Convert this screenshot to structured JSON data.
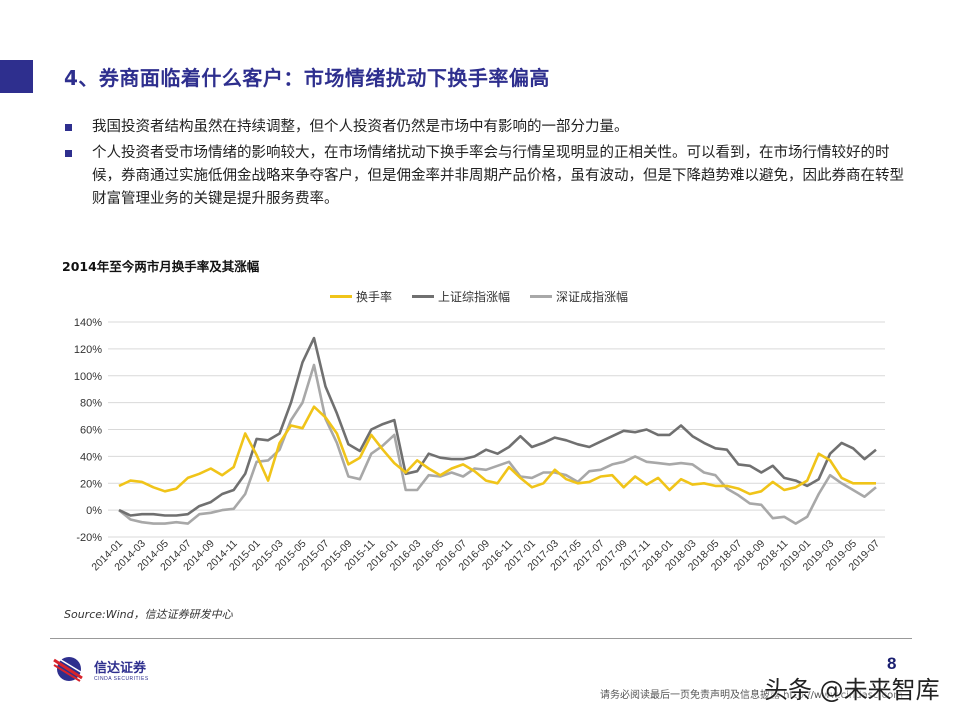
{
  "header": {
    "title": "4、券商面临着什么客户：市场情绪扰动下换手率偏高"
  },
  "bullets": [
    "我国投资者结构虽然在持续调整，但个人投资者仍然是市场中有影响的一部分力量。",
    "个人投资者受市场情绪的影响较大，在市场情绪扰动下换手率会与行情呈现明显的正相关性。可以看到，在市场行情较好的时候，券商通过实施低佣金战略来争夺客户，但是佣金率并非周期产品价格，虽有波动，但是下降趋势难以避免，因此券商在转型财富管理业务的关键是提升服务费率。"
  ],
  "chart_title": "2014年至今两市月换手率及其涨幅",
  "legend": [
    {
      "label": "换手率",
      "color": "#f0c419"
    },
    {
      "label": "上证综指涨幅",
      "color": "#707070"
    },
    {
      "label": "深证成指涨幅",
      "color": "#a8a8a8"
    }
  ],
  "source": "Source:Wind，信达证券研发中心",
  "footer": {
    "logo_cn": "信达证券",
    "logo_en": "CINDA SECURITIES",
    "page_number": "8",
    "disclaimer": "请务必阅读最后一页免责声明及信息披露 http://www.cindasc.com",
    "watermark": "头条 @未来智库"
  },
  "chart_data": {
    "type": "line",
    "title": "2014年至今两市月换手率及其涨幅",
    "xlabel": "",
    "ylabel": "",
    "ylim": [
      -20,
      140
    ],
    "yticks": [
      "-20%",
      "0%",
      "20%",
      "40%",
      "60%",
      "80%",
      "100%",
      "120%",
      "140%"
    ],
    "grid": true,
    "legend_position": "top",
    "x": [
      "2014-01",
      "2014-02",
      "2014-03",
      "2014-04",
      "2014-05",
      "2014-06",
      "2014-07",
      "2014-08",
      "2014-09",
      "2014-10",
      "2014-11",
      "2014-12",
      "2015-01",
      "2015-02",
      "2015-03",
      "2015-04",
      "2015-05",
      "2015-06",
      "2015-07",
      "2015-08",
      "2015-09",
      "2015-10",
      "2015-11",
      "2015-12",
      "2016-01",
      "2016-02",
      "2016-03",
      "2016-04",
      "2016-05",
      "2016-06",
      "2016-07",
      "2016-08",
      "2016-09",
      "2016-10",
      "2016-11",
      "2016-12",
      "2017-01",
      "2017-02",
      "2017-03",
      "2017-04",
      "2017-05",
      "2017-06",
      "2017-07",
      "2017-08",
      "2017-09",
      "2017-10",
      "2017-11",
      "2017-12",
      "2018-01",
      "2018-02",
      "2018-03",
      "2018-04",
      "2018-05",
      "2018-06",
      "2018-07",
      "2018-08",
      "2018-09",
      "2018-10",
      "2018-11",
      "2018-12",
      "2019-01",
      "2019-02",
      "2019-03",
      "2019-04",
      "2019-05",
      "2019-06",
      "2019-07"
    ],
    "xtick_labels": [
      "2014-01",
      "2014-03",
      "2014-05",
      "2014-07",
      "2014-09",
      "2014-11",
      "2015-01",
      "2015-03",
      "2015-05",
      "2015-07",
      "2015-09",
      "2015-11",
      "2016-01",
      "2016-03",
      "2016-05",
      "2016-07",
      "2016-09",
      "2016-11",
      "2017-01",
      "2017-03",
      "2017-05",
      "2017-07",
      "2017-09",
      "2017-11",
      "2018-01",
      "2018-03",
      "2018-05",
      "2018-07",
      "2018-09",
      "2018-11",
      "2019-01",
      "2019-03",
      "2019-05",
      "2019-07"
    ],
    "series": [
      {
        "name": "换手率",
        "color": "#f0c419",
        "values": [
          18,
          22,
          21,
          17,
          14,
          16,
          24,
          27,
          31,
          26,
          32,
          57,
          41,
          22,
          50,
          63,
          61,
          77,
          69,
          57,
          34,
          39,
          56,
          45,
          35,
          28,
          37,
          31,
          26,
          31,
          34,
          29,
          22,
          20,
          32,
          24,
          17,
          20,
          30,
          23,
          20,
          21,
          25,
          26,
          17,
          25,
          19,
          24,
          15,
          23,
          19,
          20,
          18,
          18,
          16,
          12,
          14,
          21,
          15,
          17,
          22,
          42,
          37,
          24,
          20,
          20,
          20
        ]
      },
      {
        "name": "上证综指涨幅",
        "color": "#707070",
        "values": [
          0,
          -4,
          -3,
          -3,
          -4,
          -4,
          -3,
          3,
          6,
          12,
          15,
          27,
          53,
          52,
          57,
          80,
          110,
          128,
          92,
          72,
          49,
          44,
          60,
          64,
          67,
          27,
          29,
          42,
          39,
          38,
          38,
          40,
          45,
          42,
          47,
          55,
          47,
          50,
          54,
          52,
          49,
          47,
          51,
          55,
          59,
          58,
          60,
          56,
          56,
          63,
          55,
          50,
          46,
          45,
          34,
          33,
          28,
          33,
          24,
          22,
          18,
          23,
          42,
          50,
          46,
          38,
          45
        ]
      },
      {
        "name": "深证成指涨幅",
        "color": "#a8a8a8",
        "values": [
          0,
          -7,
          -9,
          -10,
          -10,
          -9,
          -10,
          -3,
          -2,
          0,
          1,
          12,
          36,
          37,
          45,
          67,
          80,
          108,
          68,
          50,
          25,
          23,
          42,
          48,
          56,
          15,
          15,
          26,
          25,
          28,
          25,
          31,
          30,
          33,
          36,
          25,
          24,
          28,
          28,
          26,
          21,
          29,
          30,
          34,
          36,
          40,
          36,
          35,
          34,
          35,
          34,
          28,
          26,
          16,
          11,
          5,
          4,
          -6,
          -5,
          -10,
          -5,
          12,
          26,
          20,
          15,
          10,
          17
        ]
      }
    ]
  }
}
